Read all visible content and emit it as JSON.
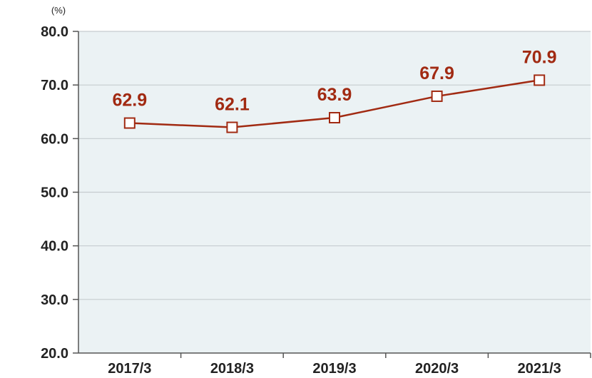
{
  "chart_data": {
    "type": "line",
    "unit": "(%)",
    "categories": [
      "2017/3",
      "2018/3",
      "2019/3",
      "2020/3",
      "2021/3"
    ],
    "series": [
      {
        "values": [
          62.9,
          62.1,
          63.9,
          67.9,
          70.9
        ]
      }
    ],
    "data_labels": [
      "62.9",
      "62.1",
      "63.9",
      "67.9",
      "70.9"
    ],
    "y_ticks": [
      "80.0",
      "70.0",
      "60.0",
      "50.0",
      "40.0",
      "30.0",
      "20.0"
    ],
    "ylim": [
      20,
      80
    ],
    "grid": true,
    "marker": "hollow-square",
    "colors": {
      "line": "#a12a12",
      "label": "#a12a12",
      "plot_bg": "#ebf2f4",
      "grid": "#c6cccf",
      "axis": "#555555"
    }
  }
}
